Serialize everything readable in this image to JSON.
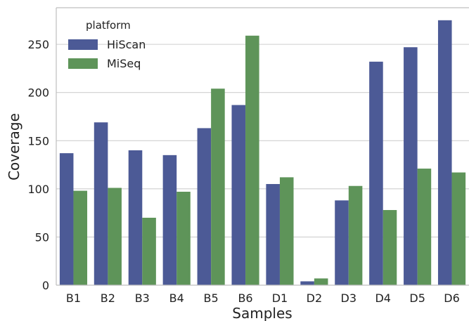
{
  "chart_data": {
    "type": "bar",
    "categories": [
      "B1",
      "B2",
      "B3",
      "B4",
      "B5",
      "B6",
      "D1",
      "D2",
      "D3",
      "D4",
      "D5",
      "D6"
    ],
    "series": [
      {
        "name": "HiScan",
        "color": "#4c5a96",
        "values": [
          137,
          169,
          140,
          135,
          163,
          187,
          105,
          4,
          88,
          232,
          247,
          275
        ]
      },
      {
        "name": "MiSeq",
        "color": "#5e9459",
        "values": [
          98,
          101,
          70,
          97,
          204,
          259,
          112,
          7,
          103,
          78,
          121,
          117
        ]
      }
    ],
    "xlabel": "Samples",
    "ylabel": "Coverage",
    "ylim": [
      0,
      288
    ],
    "yticks": [
      0,
      50,
      100,
      150,
      200,
      250
    ],
    "grid": "horizontal",
    "legend": {
      "title": "platform",
      "placement": "top-left"
    }
  }
}
